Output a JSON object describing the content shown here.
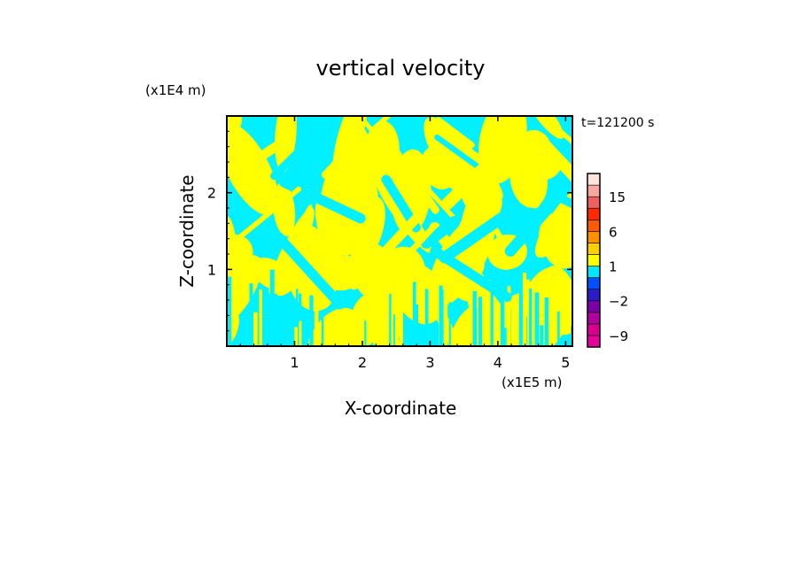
{
  "chart_data": {
    "type": "heatmap",
    "title": "vertical velocity",
    "xlabel": "X-coordinate",
    "ylabel": "Z-coordinate",
    "x_unit_label": "(x1E5 m)",
    "y_unit_label": "(x1E4 m)",
    "time_label": "t=121200 s",
    "xlim": [
      0,
      5.1
    ],
    "ylim": [
      0,
      3.0
    ],
    "x_ticks": [
      1,
      2,
      3,
      4,
      5
    ],
    "y_ticks": [
      1,
      2
    ],
    "x_tick_labels": [
      "1",
      "2",
      "3",
      "4",
      "5"
    ],
    "y_tick_labels": [
      "1",
      "2"
    ],
    "field_colors": {
      "positive": "#ffff00",
      "negative": "#00f0ff"
    },
    "colorbar": {
      "levels": [
        -12,
        -9,
        -6,
        -4,
        -2,
        -1,
        0,
        1,
        2,
        4,
        6,
        9,
        12,
        15,
        20,
        25
      ],
      "colors": [
        "#e8009a",
        "#d6008c",
        "#b0009e",
        "#7a00a8",
        "#2a1cc8",
        "#0050ff",
        "#00e8ff",
        "#ffff00",
        "#ffd000",
        "#ff9000",
        "#ff5a00",
        "#ff2a00",
        "#f06060",
        "#f8a8a0",
        "#fce6dc"
      ],
      "tick_values": [
        15,
        6,
        1,
        -2,
        -9
      ],
      "tick_labels": [
        "15",
        "6",
        "1",
        "−2",
        "−9"
      ]
    }
  }
}
